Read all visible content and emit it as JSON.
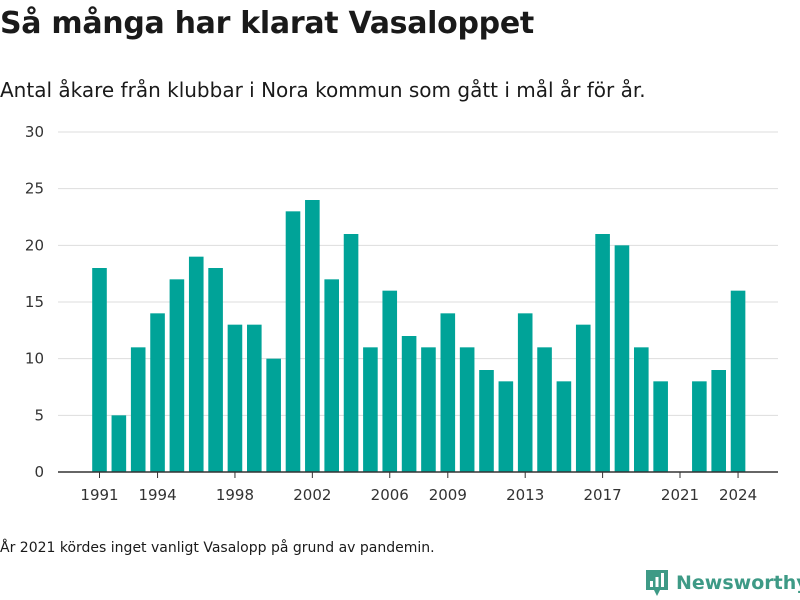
{
  "title": "Så många har klarat Vasaloppet",
  "subtitle": "Antal åkare från klubbar i Nora kommun som gått i mål år för år.",
  "footnote": "År 2021 kördes inget vanligt Vasalopp på grund av pandemin.",
  "brand": {
    "name": "Newsworthy",
    "icon": "newsworthy-logo-icon"
  },
  "colors": {
    "bar": "#00a398",
    "grid": "#dddddd",
    "axis": "#333333",
    "brand": "#3e9a86"
  },
  "chart_data": {
    "type": "bar",
    "title": "Så många har klarat Vasaloppet",
    "xlabel": "",
    "ylabel": "",
    "grid": true,
    "legend": "none",
    "ylim": [
      0,
      30
    ],
    "yticks": [
      0,
      5,
      10,
      15,
      20,
      25,
      30
    ],
    "xticks": [
      1991,
      1994,
      1998,
      2002,
      2006,
      2009,
      2013,
      2017,
      2021,
      2024
    ],
    "categories": [
      1991,
      1992,
      1993,
      1994,
      1995,
      1996,
      1997,
      1998,
      1999,
      2000,
      2001,
      2002,
      2003,
      2004,
      2005,
      2006,
      2007,
      2008,
      2009,
      2010,
      2011,
      2012,
      2013,
      2014,
      2015,
      2016,
      2017,
      2018,
      2019,
      2020,
      2021,
      2022,
      2023,
      2024
    ],
    "values": [
      18,
      5,
      11,
      14,
      17,
      19,
      18,
      13,
      13,
      10,
      23,
      24,
      17,
      21,
      11,
      16,
      12,
      11,
      14,
      11,
      9,
      8,
      14,
      11,
      8,
      13,
      21,
      20,
      11,
      8,
      0,
      8,
      9,
      16
    ]
  }
}
